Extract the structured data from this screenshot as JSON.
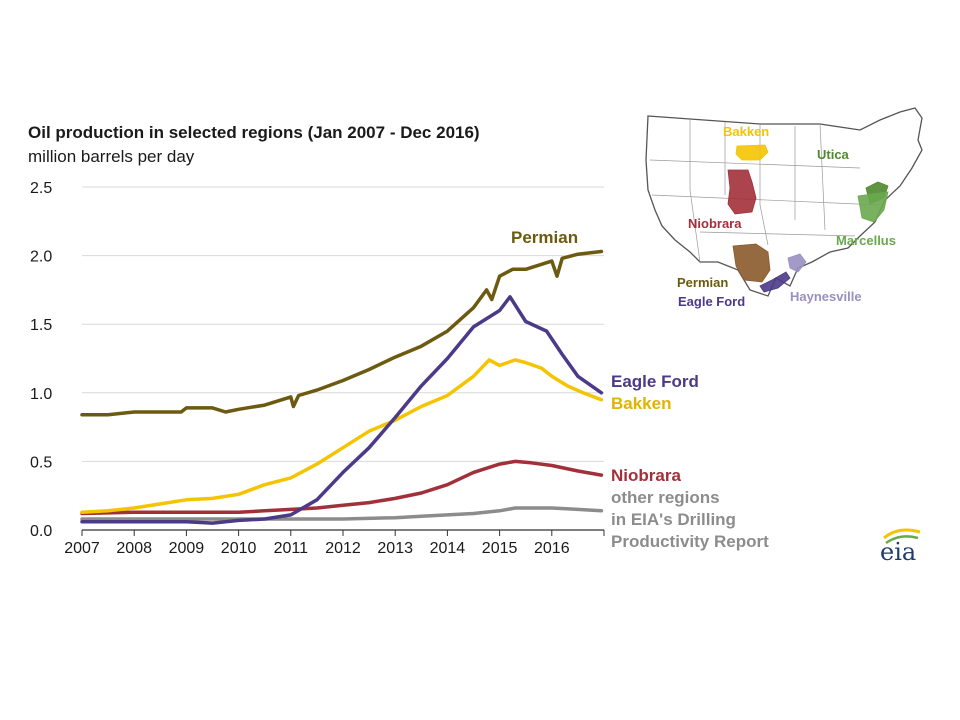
{
  "chart_data": {
    "type": "line",
    "title": "Oil production in selected regions (Jan 2007 - Dec 2016)",
    "subtitle": "million barrels per day",
    "ylim": [
      0,
      2.5
    ],
    "xlim": [
      2007,
      2017
    ],
    "y_ticks": [
      "0.0",
      "0.5",
      "1.0",
      "1.5",
      "2.0",
      "2.5"
    ],
    "x_ticks": [
      "2007",
      "2008",
      "2009",
      "2010",
      "2011",
      "2012",
      "2013",
      "2014",
      "2015",
      "2016"
    ],
    "grid": true,
    "series": [
      {
        "name": "Permian",
        "color": "#6b5a0f",
        "x": [
          2007.0,
          2007.5,
          2008.0,
          2008.5,
          2008.9,
          2009.0,
          2009.5,
          2009.75,
          2010.0,
          2010.5,
          2011.0,
          2011.05,
          2011.15,
          2011.5,
          2012.0,
          2012.5,
          2013.0,
          2013.5,
          2014.0,
          2014.5,
          2014.75,
          2014.85,
          2015.0,
          2015.25,
          2015.5,
          2016.0,
          2016.1,
          2016.2,
          2016.5,
          2016.95
        ],
        "values": [
          0.84,
          0.84,
          0.86,
          0.86,
          0.86,
          0.89,
          0.89,
          0.86,
          0.88,
          0.91,
          0.97,
          0.9,
          0.98,
          1.02,
          1.09,
          1.17,
          1.26,
          1.34,
          1.45,
          1.62,
          1.75,
          1.68,
          1.85,
          1.9,
          1.9,
          1.96,
          1.85,
          1.98,
          2.01,
          2.03
        ]
      },
      {
        "name": "Eagle Ford",
        "color": "#4b3a87",
        "x": [
          2007.0,
          2008.0,
          2009.0,
          2009.5,
          2010.0,
          2010.5,
          2011.0,
          2011.5,
          2012.0,
          2012.5,
          2013.0,
          2013.5,
          2014.0,
          2014.5,
          2015.0,
          2015.2,
          2015.5,
          2015.9,
          2016.2,
          2016.5,
          2016.95
        ],
        "values": [
          0.06,
          0.06,
          0.06,
          0.05,
          0.07,
          0.08,
          0.11,
          0.22,
          0.42,
          0.6,
          0.82,
          1.05,
          1.25,
          1.48,
          1.6,
          1.7,
          1.52,
          1.45,
          1.28,
          1.12,
          1.0
        ]
      },
      {
        "name": "Bakken",
        "color": "#f5c400",
        "x": [
          2007.0,
          2007.5,
          2008.0,
          2008.5,
          2009.0,
          2009.5,
          2010.0,
          2010.5,
          2011.0,
          2011.5,
          2012.0,
          2012.5,
          2013.0,
          2013.5,
          2014.0,
          2014.5,
          2014.8,
          2015.0,
          2015.3,
          2015.5,
          2015.8,
          2016.0,
          2016.3,
          2016.6,
          2016.95
        ],
        "values": [
          0.13,
          0.14,
          0.16,
          0.19,
          0.22,
          0.23,
          0.26,
          0.33,
          0.38,
          0.48,
          0.6,
          0.72,
          0.8,
          0.9,
          0.98,
          1.12,
          1.24,
          1.2,
          1.24,
          1.22,
          1.18,
          1.12,
          1.05,
          1.0,
          0.95
        ]
      },
      {
        "name": "Niobrara",
        "color": "#a2303a",
        "x": [
          2007.0,
          2008.0,
          2009.0,
          2010.0,
          2010.5,
          2011.0,
          2011.5,
          2012.0,
          2012.5,
          2013.0,
          2013.5,
          2014.0,
          2014.5,
          2015.0,
          2015.3,
          2015.6,
          2016.0,
          2016.5,
          2016.95
        ],
        "values": [
          0.12,
          0.13,
          0.13,
          0.13,
          0.14,
          0.15,
          0.16,
          0.18,
          0.2,
          0.23,
          0.27,
          0.33,
          0.42,
          0.48,
          0.5,
          0.49,
          0.47,
          0.43,
          0.4
        ]
      },
      {
        "name": "other regions in EIA's Drilling Productivity Report",
        "color": "#8c8c8c",
        "x": [
          2007.0,
          2008.0,
          2009.0,
          2010.0,
          2011.0,
          2012.0,
          2013.0,
          2013.5,
          2014.0,
          2014.5,
          2015.0,
          2015.3,
          2015.6,
          2016.0,
          2016.5,
          2016.95
        ],
        "values": [
          0.08,
          0.08,
          0.08,
          0.08,
          0.08,
          0.08,
          0.09,
          0.1,
          0.11,
          0.12,
          0.14,
          0.16,
          0.16,
          0.16,
          0.15,
          0.14
        ]
      }
    ]
  },
  "series_labels": {
    "permian": "Permian",
    "eagle_ford": "Eagle Ford",
    "bakken": "Bakken",
    "niobrara": "Niobrara",
    "other_line1": "other regions",
    "other_line2": "in EIA's Drilling",
    "other_line3": "Productivity Report"
  },
  "map": {
    "labels": {
      "bakken": "Bakken",
      "utica": "Utica",
      "niobrara": "Niobrara",
      "marcellus": "Marcellus",
      "permian": "Permian",
      "eagle_ford": "Eagle Ford",
      "haynesville": "Haynesville"
    },
    "colors": {
      "bakken": "#f5c400",
      "utica": "#4e8a2e",
      "marcellus": "#6aa84f",
      "niobrara": "#a2303a",
      "permian": "#8b5a2b",
      "eagle_ford": "#4b3a87",
      "haynesville": "#9a8fc2"
    }
  },
  "logo": {
    "text": "eia",
    "icon": "eia-logo-icon"
  }
}
